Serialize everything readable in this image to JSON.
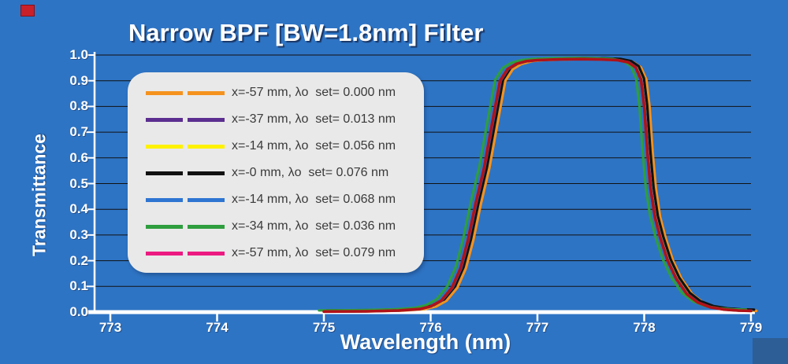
{
  "slide": {
    "background_color": "#2E74C4",
    "red_marker_color": "#C9202A",
    "corner_box_color": "#2D5F96"
  },
  "chart_data": {
    "type": "line",
    "title": "Narrow BPF [BW=1.8nm] Filter",
    "xlabel": "Wavelength (nm)",
    "ylabel": "Transmittance",
    "xlim": [
      773,
      779
    ],
    "ylim": [
      0.0,
      1.0
    ],
    "x_ticks": [
      "773",
      "774",
      "775",
      "776",
      "777",
      "778",
      "779"
    ],
    "y_ticks": [
      "0.0",
      "0.1",
      "0.2",
      "0.3",
      "0.4",
      "0.5",
      "0.6",
      "0.7",
      "0.8",
      "0.9",
      "1.0"
    ],
    "grid": "horizontal-only",
    "gridline_color": "#111111",
    "axis_color": "#FFFFFF",
    "legend_position": "upper-left",
    "legend_background": "#E9E9E9",
    "series": [
      {
        "label": "x=-57 mm, λo  set= 0.000 nm",
        "color": "#F5921E",
        "x_mm": -57,
        "lambda_set_nm": 0.0
      },
      {
        "label": "x=-37 mm, λo  set= 0.013 nm",
        "color": "#5B2E90",
        "x_mm": -37,
        "lambda_set_nm": 0.013
      },
      {
        "label": "x=-14 mm, λo  set= 0.056 nm",
        "color": "#FFF200",
        "x_mm": -14,
        "lambda_set_nm": 0.056
      },
      {
        "label": "x=-0 mm, λo  set= 0.076 nm",
        "color": "#111111",
        "x_mm": 0,
        "lambda_set_nm": 0.076
      },
      {
        "label": "x=-14 mm, λo  set= 0.068 nm",
        "color": "#2E75D2",
        "x_mm": -14,
        "lambda_set_nm": 0.068
      },
      {
        "label": "x=-34 mm, λo  set= 0.036 nm",
        "color": "#2E9E3E",
        "x_mm": -34,
        "lambda_set_nm": 0.036
      },
      {
        "label": "x=-57 mm, λo  set= 0.079 nm",
        "color": "#EC1A80",
        "x_mm": -57,
        "lambda_set_nm": 0.079
      }
    ],
    "curve_note": "All seven curves are nearly identical band-pass responses, overlapping within ~0.08 nm; visible composite edge is dark red with green on the left edges, black at the top-right bend and orange on the right tail.",
    "curve_points": [
      [
        775.0,
        0.002
      ],
      [
        775.4,
        0.003
      ],
      [
        775.7,
        0.006
      ],
      [
        775.9,
        0.012
      ],
      [
        776.0,
        0.022
      ],
      [
        776.1,
        0.045
      ],
      [
        776.2,
        0.095
      ],
      [
        776.28,
        0.17
      ],
      [
        776.35,
        0.28
      ],
      [
        776.42,
        0.42
      ],
      [
        776.5,
        0.56
      ],
      [
        776.57,
        0.72
      ],
      [
        776.65,
        0.9
      ],
      [
        776.72,
        0.945
      ],
      [
        776.8,
        0.965
      ],
      [
        776.9,
        0.976
      ],
      [
        777.0,
        0.98
      ],
      [
        777.2,
        0.983
      ],
      [
        777.4,
        0.984
      ],
      [
        777.6,
        0.983
      ],
      [
        777.75,
        0.98
      ],
      [
        777.85,
        0.972
      ],
      [
        777.92,
        0.952
      ],
      [
        777.97,
        0.905
      ],
      [
        778.0,
        0.8
      ],
      [
        778.03,
        0.62
      ],
      [
        778.06,
        0.48
      ],
      [
        778.1,
        0.37
      ],
      [
        778.15,
        0.29
      ],
      [
        778.22,
        0.2
      ],
      [
        778.3,
        0.13
      ],
      [
        778.4,
        0.07
      ],
      [
        778.5,
        0.038
      ],
      [
        778.62,
        0.019
      ],
      [
        778.75,
        0.01
      ],
      [
        778.88,
        0.006
      ],
      [
        779.0,
        0.005
      ]
    ]
  }
}
